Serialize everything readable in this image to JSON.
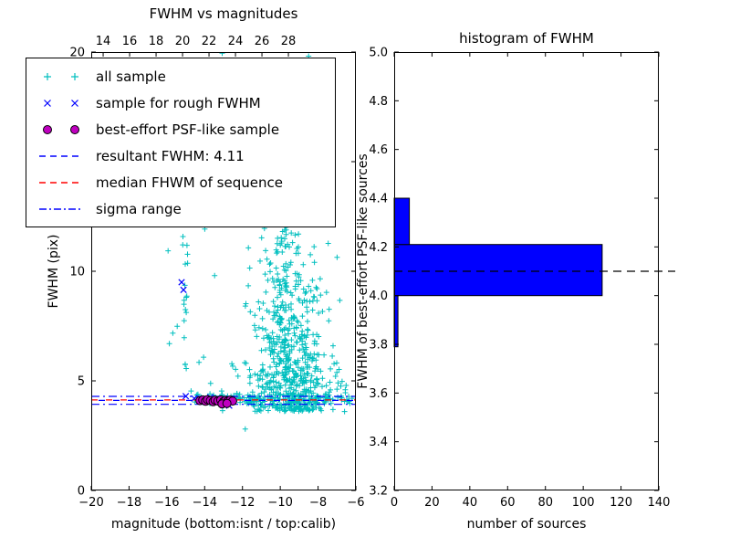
{
  "figure": {
    "background": "#ffffff"
  },
  "colors": {
    "all_sample": "#00bfbf",
    "rough_sample": "#0000ff",
    "psf_sample": "#bf00bf",
    "psf_edge": "#000000",
    "resultant_line": "#0000ff",
    "median_line": "#ff0000",
    "sigma_line": "#0000ff",
    "hist_fill": "#0000ff",
    "hist_edge": "#000000",
    "hist_median_line": "#000000",
    "axis": "#000000"
  },
  "legend": {
    "items": [
      {
        "label": "all sample",
        "marker": "plus",
        "color": "#00bfbf"
      },
      {
        "label": "sample for rough FWHM",
        "marker": "x",
        "color": "#0000ff"
      },
      {
        "label": "best-effort PSF-like sample",
        "marker": "circle",
        "color": "#bf00bf"
      },
      {
        "label": "resultant FWHM: 4.11",
        "marker": "dashed",
        "color": "#0000ff"
      },
      {
        "label": "median FHWM of sequence",
        "marker": "dashed",
        "color": "#ff0000"
      },
      {
        "label": "sigma range",
        "marker": "dashdot",
        "color": "#0000ff"
      }
    ]
  },
  "chart_data": [
    {
      "type": "scatter",
      "title": "FWHM vs magnitudes",
      "xlabel": "magnitude (bottom:isnt / top:calib)",
      "ylabel": "FWHM (pix)",
      "xlim": [
        -20,
        -6
      ],
      "ylim": [
        0,
        20
      ],
      "x_ticks": [
        -20,
        -18,
        -16,
        -14,
        -12,
        -10,
        -8,
        -6
      ],
      "x_tick_labels": [
        "−20",
        "−18",
        "−16",
        "−14",
        "−12",
        "−10",
        "−8",
        "−6"
      ],
      "y_ticks": [
        0,
        5,
        10,
        15,
        20
      ],
      "y_tick_labels": [
        "0",
        "5",
        "10",
        "15",
        "20"
      ],
      "top_axis": {
        "lim": [
          13.1,
          33.1
        ],
        "ticks": [
          14,
          16,
          18,
          20,
          22,
          24,
          26,
          28
        ],
        "tick_labels": [
          "14",
          "16",
          "18",
          "20",
          "22",
          "24",
          "26",
          "28"
        ]
      },
      "hlines": [
        {
          "name": "sigma range low",
          "value": 3.93,
          "style": "dashdot",
          "color": "#0000ff"
        },
        {
          "name": "sigma range high",
          "value": 4.29,
          "style": "dashdot",
          "color": "#0000ff"
        },
        {
          "name": "median FHWM of sequence",
          "value": 4.13,
          "style": "dashed",
          "color": "#ff0000"
        },
        {
          "name": "resultant FWHM",
          "value": 4.11,
          "style": "dashed",
          "color": "#0000ff"
        }
      ],
      "series": [
        {
          "name": "all sample",
          "marker": "plus",
          "color": "#00bfbf",
          "seed": 20,
          "clusters": [
            {
              "n": 560,
              "x": {
                "dist": "normal",
                "mu": -9.4,
                "sd": 1.15,
                "min": -13.2,
                "max": -6.05
              },
              "y": {
                "dist": "exp",
                "off": 3.6,
                "scale": 2.4,
                "max": 19.9
              }
            },
            {
              "n": 120,
              "x": {
                "dist": "normal",
                "mu": -9.8,
                "sd": 0.55,
                "min": -11.2,
                "max": -8.5
              },
              "y": {
                "dist": "uniform",
                "min": 6,
                "max": 13.5
              }
            },
            {
              "n": 130,
              "x": {
                "dist": "uniform",
                "min": -14.8,
                "max": -6.1
              },
              "y": {
                "dist": "normal",
                "mu": 4.18,
                "sd": 0.13,
                "min": 3.85,
                "max": 4.6
              }
            },
            {
              "n": 15,
              "x": {
                "dist": "normal",
                "mu": -15.05,
                "sd": 0.07,
                "min": -15.3,
                "max": -14.8
              },
              "y": {
                "dist": "uniform",
                "min": 4.2,
                "max": 11.8
              }
            },
            {
              "n": 40,
              "x": {
                "dist": "uniform",
                "min": -11.6,
                "max": -7.4
              },
              "y": {
                "dist": "uniform",
                "min": 11,
                "max": 19.5
              }
            },
            {
              "n": 9,
              "x": {
                "dist": "uniform",
                "min": -15.3,
                "max": -7.8
              },
              "y": {
                "dist": "uniform",
                "min": 19.1,
                "max": 19.95
              }
            },
            {
              "n": 12,
              "x": {
                "dist": "uniform",
                "min": -16.1,
                "max": -13.4
              },
              "y": {
                "dist": "uniform",
                "min": 4.6,
                "max": 12.5
              }
            }
          ],
          "points": [
            [
              -11.85,
              2.8
            ],
            [
              -6.6,
              3.6
            ]
          ]
        },
        {
          "name": "sample for rough FWHM",
          "marker": "x",
          "color": "#0000ff",
          "points": [
            [
              -15.22,
              9.5
            ],
            [
              -15.12,
              9.15
            ],
            [
              -15.0,
              4.3
            ],
            [
              -14.55,
              4.2
            ],
            [
              -14.1,
              4.18
            ],
            [
              -13.7,
              4.25
            ],
            [
              -13.3,
              4.12
            ],
            [
              -12.95,
              4.2
            ],
            [
              -12.7,
              3.87
            ],
            [
              -12.55,
              4.15
            ]
          ]
        },
        {
          "name": "best-effort PSF-like sample",
          "marker": "circle",
          "color": "#bf00bf",
          "points": [
            [
              -14.25,
              4.1
            ],
            [
              -14.1,
              4.13
            ],
            [
              -13.95,
              4.07
            ],
            [
              -13.85,
              4.14
            ],
            [
              -13.7,
              4.1
            ],
            [
              -13.55,
              4.05
            ],
            [
              -13.45,
              4.12
            ],
            [
              -13.3,
              4.08
            ],
            [
              -13.15,
              4.13
            ],
            [
              -13.0,
              4.06
            ],
            [
              -12.9,
              4.11
            ],
            [
              -12.78,
              4.07
            ],
            [
              -12.65,
              4.12
            ],
            [
              -12.52,
              4.08
            ],
            [
              -13.08,
              3.95
            ],
            [
              -12.82,
              3.97
            ]
          ]
        }
      ]
    },
    {
      "type": "bar",
      "orientation": "horizontal",
      "title": "histogram of FWHM",
      "xlabel": "number of sources",
      "ylabel": "FWHM of best-effort PSF-like sources",
      "xlim": [
        0,
        140
      ],
      "ylim": [
        3.2,
        5.0
      ],
      "x_ticks": [
        0,
        20,
        40,
        60,
        80,
        100,
        120,
        140
      ],
      "x_tick_labels": [
        "0",
        "20",
        "40",
        "60",
        "80",
        "100",
        "120",
        "140"
      ],
      "y_ticks": [
        3.2,
        3.4,
        3.6,
        3.8,
        4.0,
        4.2,
        4.4,
        4.6,
        4.8,
        5.0
      ],
      "y_tick_labels": [
        "3.2",
        "3.4",
        "3.6",
        "3.8",
        "4.0",
        "4.2",
        "4.4",
        "4.6",
        "4.8",
        "5.0"
      ],
      "bars": [
        {
          "lo": 3.79,
          "hi": 4.0,
          "count": 2
        },
        {
          "lo": 4.0,
          "hi": 4.21,
          "count": 110
        },
        {
          "lo": 4.21,
          "hi": 4.4,
          "count": 8
        }
      ],
      "median_line": {
        "value": 4.1,
        "style": "dashed",
        "color": "#000000"
      }
    }
  ]
}
